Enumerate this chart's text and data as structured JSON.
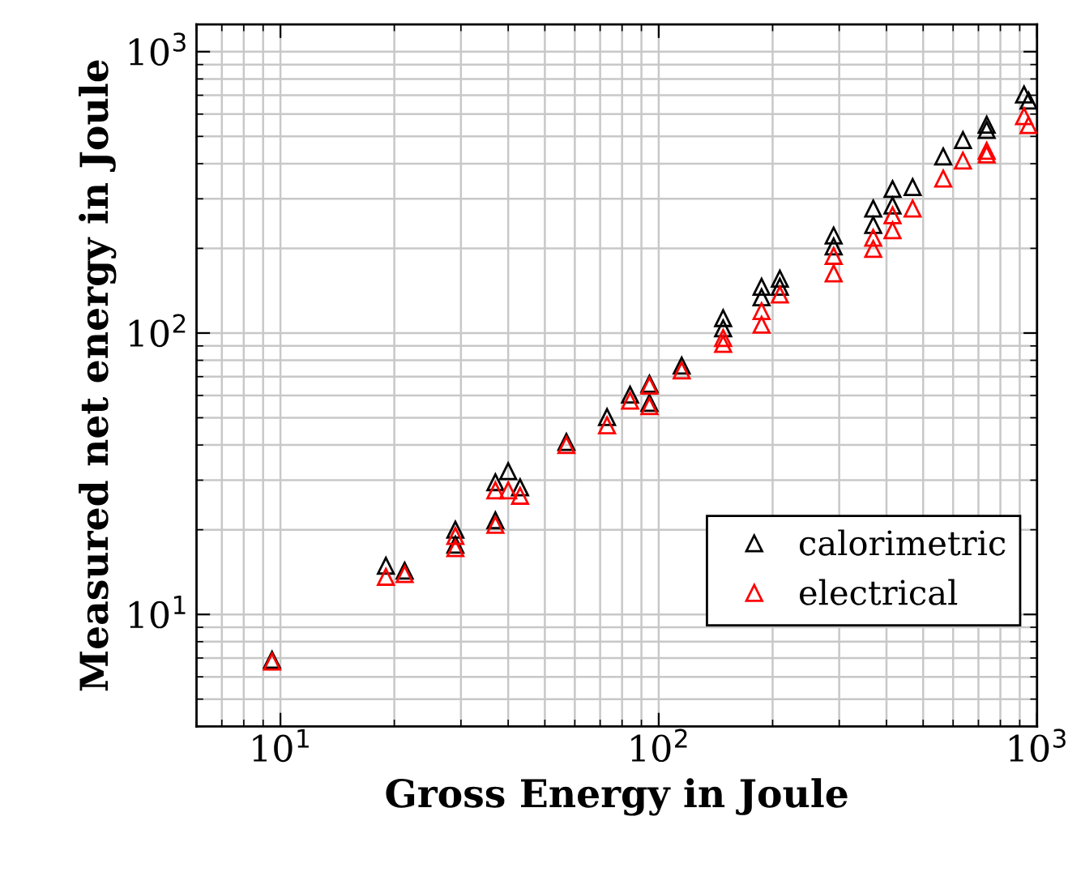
{
  "chart_data": {
    "type": "scatter",
    "xlabel": "Gross Energy in Joule",
    "ylabel": "Measured net energy in Joule",
    "log": "xy",
    "grid": true,
    "legend": "bottom right",
    "marker": "triangle",
    "xlim": [
      6,
      1000
    ],
    "ylim": [
      4,
      1250
    ],
    "xticks": [
      {
        "value": 10,
        "label": "10$^{1}$"
      },
      {
        "value": 100,
        "label": "10$^{2}$"
      },
      {
        "value": 1000,
        "label": "10$^{3}$"
      }
    ],
    "yticks": [
      {
        "value": 10,
        "label": "10$^{1}$"
      },
      {
        "value": 100,
        "label": "10$^{2}$"
      },
      {
        "value": 1000,
        "label": "10$^{3}$"
      }
    ],
    "series": [
      {
        "name": "calorimetric",
        "color": "#000000",
        "x": [
          9.5,
          19,
          21.3,
          29,
          29,
          37,
          37,
          40,
          43,
          57,
          73,
          84,
          94.5,
          94.5,
          115,
          148,
          148,
          187,
          187,
          209,
          209,
          290,
          290,
          369,
          369,
          415,
          415,
          469,
          565,
          637,
          736,
          736,
          924,
          950
        ],
        "values": [
          6.9,
          14.9,
          14.3,
          20,
          17.7,
          29.5,
          21.6,
          32.3,
          28.3,
          41,
          50.3,
          60.4,
          66,
          56.5,
          76.6,
          113,
          104,
          146,
          134,
          156,
          146,
          222,
          203,
          277,
          242,
          325,
          284,
          330,
          424,
          485,
          550,
          527,
          704,
          670
        ]
      },
      {
        "name": "electrical",
        "color": "#ff0000",
        "x": [
          9.5,
          19,
          21.3,
          29,
          29,
          37,
          37,
          40,
          43,
          57,
          73,
          84,
          94.5,
          94.5,
          115,
          148,
          148,
          187,
          187,
          209,
          290,
          290,
          369,
          369,
          415,
          415,
          469,
          565,
          637,
          736,
          736,
          924,
          950
        ],
        "values": [
          6.8,
          13.6,
          13.9,
          19,
          17.2,
          27.6,
          20.8,
          27.6,
          26.4,
          40,
          47,
          57.5,
          65,
          55,
          73.6,
          96,
          91.5,
          119.6,
          107,
          137,
          188,
          163,
          218,
          199,
          262,
          232,
          277,
          354,
          410,
          444,
          431,
          590,
          548
        ]
      }
    ]
  }
}
